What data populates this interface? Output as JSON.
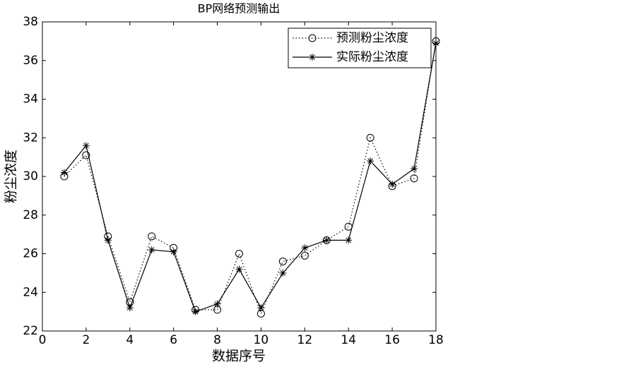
{
  "chart_data": {
    "type": "line",
    "title": "BP网络预测输出",
    "x_label": "数据序号",
    "y_label": "粉尘浓度",
    "x": [
      1,
      2,
      3,
      4,
      5,
      6,
      7,
      8,
      9,
      10,
      11,
      12,
      13,
      14,
      15,
      16,
      17,
      18
    ],
    "series": [
      {
        "name": "预测粉尘浓度",
        "color": "#000000",
        "line_style": "dotted",
        "marker": "circle",
        "values": [
          30.0,
          31.1,
          26.9,
          23.5,
          26.9,
          26.3,
          23.1,
          23.1,
          26.0,
          22.9,
          25.6,
          25.9,
          26.7,
          27.4,
          32.0,
          29.5,
          29.9,
          37.0
        ]
      },
      {
        "name": "实际粉尘浓度",
        "color": "#000000",
        "line_style": "solid",
        "marker": "star",
        "values": [
          30.2,
          31.6,
          26.7,
          23.2,
          26.2,
          26.1,
          23.0,
          23.4,
          25.2,
          23.2,
          25.0,
          26.3,
          26.7,
          26.7,
          30.8,
          29.6,
          30.4,
          36.9
        ]
      }
    ],
    "xlim": [
      0,
      18
    ],
    "xticks": [
      0,
      2,
      4,
      6,
      8,
      10,
      12,
      14,
      16,
      18
    ],
    "ylim": [
      22,
      38
    ],
    "yticks": [
      22,
      24,
      26,
      28,
      30,
      32,
      34,
      36,
      38
    ],
    "grid": false,
    "legend_position": "upper-right"
  }
}
